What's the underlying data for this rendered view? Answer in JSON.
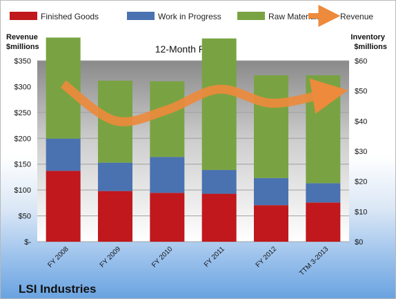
{
  "company": "LSI Industries",
  "chart_data": {
    "type": "bar",
    "subtype": "stacked bar with line overlay, dual y-axes",
    "title": "12-Month Periods",
    "categories": [
      "FY 2008",
      "FY 2009",
      "FY 2010",
      "FY 2011",
      "FY 2012",
      "TTM 3-2013"
    ],
    "series": [
      {
        "name": "Finished Goods",
        "axis": "right",
        "color": "#c0181c",
        "values": [
          23.5,
          16.8,
          16.2,
          15.9,
          12.1,
          13.0
        ]
      },
      {
        "name": "Work in Progress",
        "axis": "right",
        "color": "#4a72b0",
        "values": [
          10.7,
          9.4,
          11.9,
          7.9,
          9.0,
          6.4
        ]
      },
      {
        "name": "Raw Materials",
        "axis": "right",
        "color": "#79a342",
        "values": [
          33.5,
          27.2,
          25.1,
          43.6,
          34.1,
          35.8
        ]
      },
      {
        "name": "Revenue",
        "type": "line",
        "axis": "left",
        "color": "#ed8a3c",
        "values": [
          305,
          234,
          255,
          295,
          268,
          285
        ]
      }
    ],
    "y_left": {
      "title": "Revenue\n$millions",
      "lim": [
        0,
        350
      ],
      "ticks": [
        "$-",
        "$50",
        "$100",
        "$150",
        "$200",
        "$250",
        "$300",
        "$350"
      ]
    },
    "y_right": {
      "title": "Inventory\n$millions",
      "lim": [
        0,
        60
      ],
      "ticks": [
        "$0",
        "$10",
        "$20",
        "$30",
        "$40",
        "$50",
        "$60"
      ]
    },
    "grid": true,
    "legend_position": "top"
  }
}
